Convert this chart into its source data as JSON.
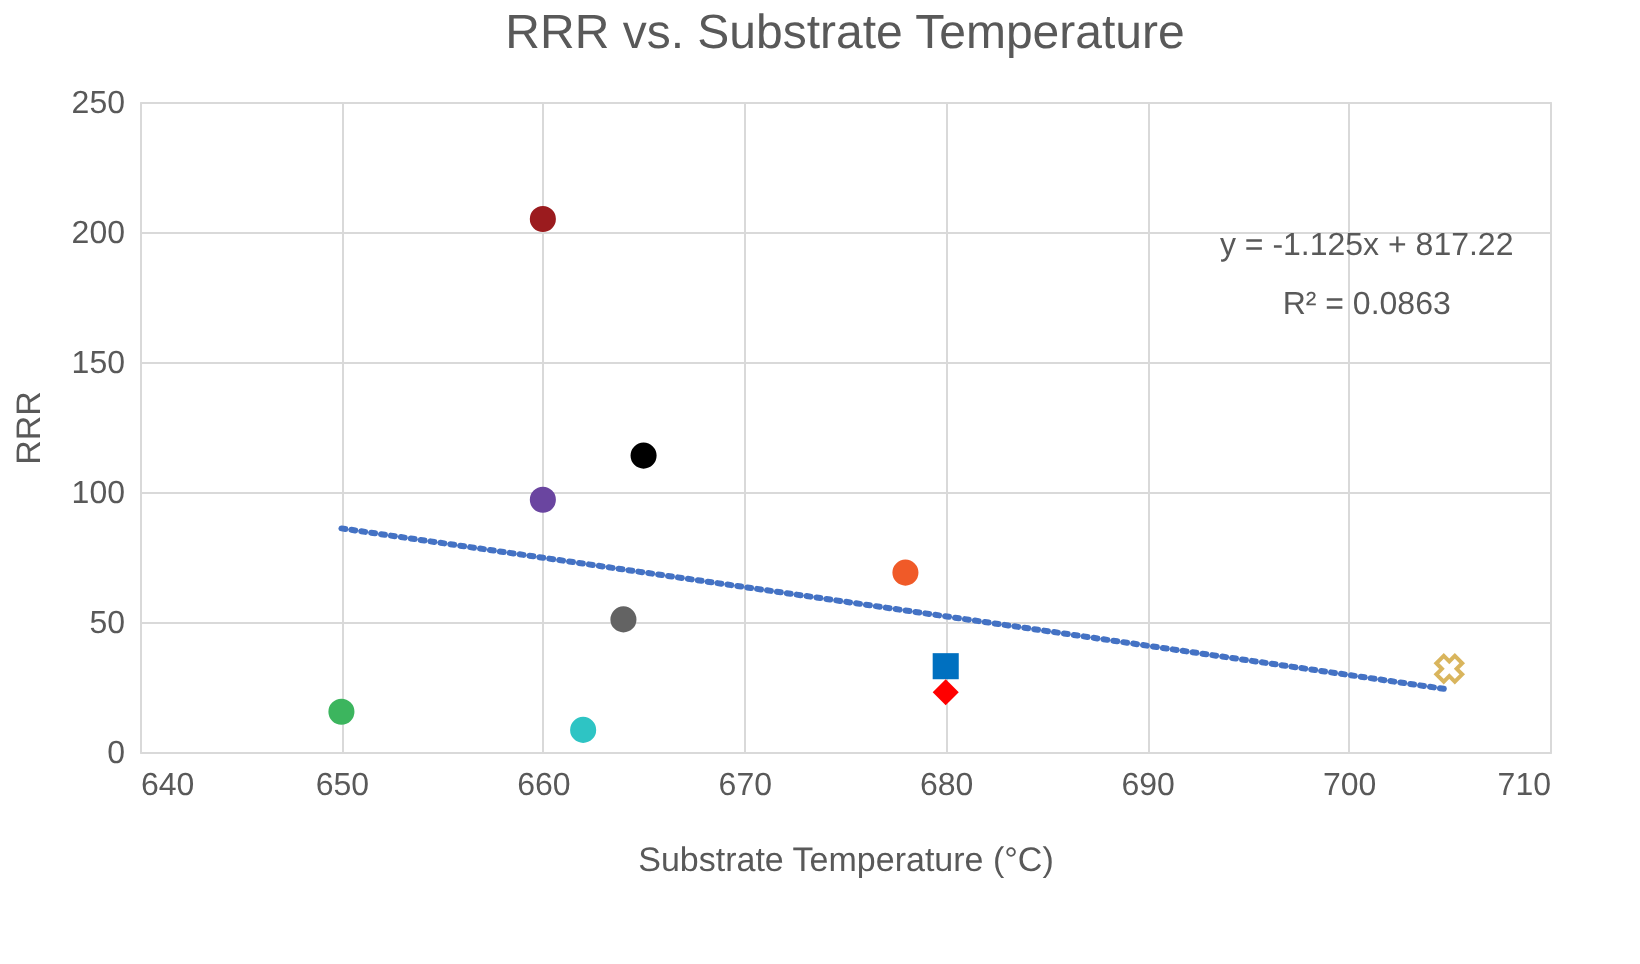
{
  "chart_data": {
    "type": "scatter",
    "title": "RRR vs. Substrate Temperature",
    "xlabel": "Substrate Temperature (°C)",
    "ylabel": "RRR",
    "xlim": [
      640,
      710
    ],
    "xticks": [
      640,
      650,
      660,
      670,
      680,
      690,
      700,
      710
    ],
    "ylim": [
      0,
      250
    ],
    "yticks": [
      0,
      50,
      100,
      150,
      200,
      250
    ],
    "grid": true,
    "series": [
      {
        "x": [
          650
        ],
        "values": [
          15.5
        ],
        "color": "#3cb55e",
        "marker": "circle"
      },
      {
        "type": "scatter",
        "x": [
          660
        ],
        "values": [
          205
        ],
        "color": "#9b1b1e",
        "marker": "circle"
      },
      {
        "type": "scatter",
        "x": [
          660
        ],
        "values": [
          97
        ],
        "color": "#6a45a0",
        "marker": "circle"
      },
      {
        "type": "scatter",
        "x": [
          662
        ],
        "values": [
          8.5
        ],
        "color": "#2ec4c4",
        "marker": "circle"
      },
      {
        "type": "scatter",
        "x": [
          664
        ],
        "values": [
          51
        ],
        "color": "#636363",
        "marker": "circle"
      },
      {
        "type": "scatter",
        "x": [
          665
        ],
        "values": [
          114
        ],
        "color": "#000000",
        "marker": "circle"
      },
      {
        "type": "scatter",
        "x": [
          678
        ],
        "values": [
          69
        ],
        "color": "#f05a28",
        "marker": "circle"
      },
      {
        "type": "scatter",
        "x": [
          680
        ],
        "values": [
          33
        ],
        "color": "#0070c0",
        "marker": "square"
      },
      {
        "type": "scatter",
        "x": [
          680
        ],
        "values": [
          23
        ],
        "color": "#ff0000",
        "marker": "diamond"
      },
      {
        "type": "scatter",
        "x": [
          705
        ],
        "values": [
          32
        ],
        "color": "#c9961a",
        "marker": "cross"
      },
      {
        "type": "line",
        "x": [
          650,
          705
        ],
        "values": [
          86,
          24
        ],
        "color": "#4472c4",
        "line_style": "dotted",
        "marker": "none"
      }
    ],
    "annotations": [
      "y = -1.125x + 817.22",
      "R² = 0.0863"
    ]
  }
}
